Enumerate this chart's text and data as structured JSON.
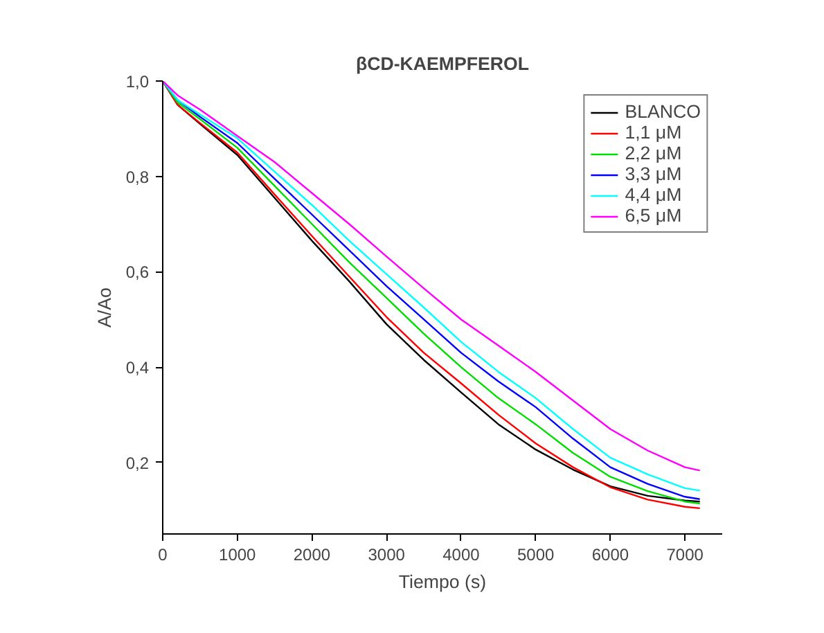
{
  "chart_data": {
    "type": "line",
    "title": "βCD-KAEMPFEROL",
    "xlabel": "Tiempo (s)",
    "ylabel": "A/Ao",
    "x": [
      0,
      200,
      500,
      1000,
      1500,
      2000,
      2500,
      3000,
      3500,
      4000,
      4500,
      5000,
      5500,
      6000,
      6500,
      7000,
      7200
    ],
    "xlim": [
      0,
      7500
    ],
    "xticks": [
      0,
      1000,
      2000,
      3000,
      4000,
      5000,
      6000,
      7000
    ],
    "ylim": [
      0.05,
      1.0
    ],
    "yticks": [
      {
        "value": 0.2,
        "label": "0,2"
      },
      {
        "value": 0.4,
        "label": "0,4"
      },
      {
        "value": 0.6,
        "label": "0,6"
      },
      {
        "value": 0.8,
        "label": "0,8"
      },
      {
        "value": 1.0,
        "label": "1,0"
      }
    ],
    "grid": false,
    "legend": "top right",
    "line_style": "solid",
    "marker": "none",
    "series": [
      {
        "name": "BLANCO",
        "color": "#000000",
        "values": [
          1.0,
          0.95,
          0.91,
          0.845,
          0.755,
          0.665,
          0.58,
          0.49,
          0.415,
          0.347,
          0.28,
          0.227,
          0.185,
          0.15,
          0.13,
          0.12,
          0.118
        ]
      },
      {
        "name": "1,1 μM",
        "color": "#ff0000",
        "values": [
          1.0,
          0.95,
          0.912,
          0.85,
          0.762,
          0.675,
          0.59,
          0.505,
          0.43,
          0.366,
          0.3,
          0.24,
          0.19,
          0.148,
          0.122,
          0.107,
          0.104
        ]
      },
      {
        "name": "2,2 μM",
        "color": "#00dd00",
        "values": [
          1.0,
          0.955,
          0.92,
          0.86,
          0.78,
          0.7,
          0.62,
          0.545,
          0.47,
          0.4,
          0.335,
          0.28,
          0.22,
          0.17,
          0.14,
          0.118,
          0.114
        ]
      },
      {
        "name": "3,3 μM",
        "color": "#0000ff",
        "values": [
          1.0,
          0.96,
          0.925,
          0.87,
          0.795,
          0.72,
          0.645,
          0.57,
          0.5,
          0.43,
          0.37,
          0.316,
          0.25,
          0.19,
          0.155,
          0.128,
          0.123
        ]
      },
      {
        "name": "4,4 μM",
        "color": "#00ffff",
        "values": [
          1.0,
          0.96,
          0.93,
          0.88,
          0.81,
          0.74,
          0.665,
          0.595,
          0.525,
          0.453,
          0.39,
          0.335,
          0.27,
          0.21,
          0.175,
          0.146,
          0.141
        ]
      },
      {
        "name": "6,5 μM",
        "color": "#ff00ff",
        "values": [
          1.0,
          0.97,
          0.94,
          0.885,
          0.83,
          0.765,
          0.7,
          0.632,
          0.565,
          0.5,
          0.445,
          0.39,
          0.33,
          0.27,
          0.225,
          0.19,
          0.183
        ]
      }
    ]
  }
}
